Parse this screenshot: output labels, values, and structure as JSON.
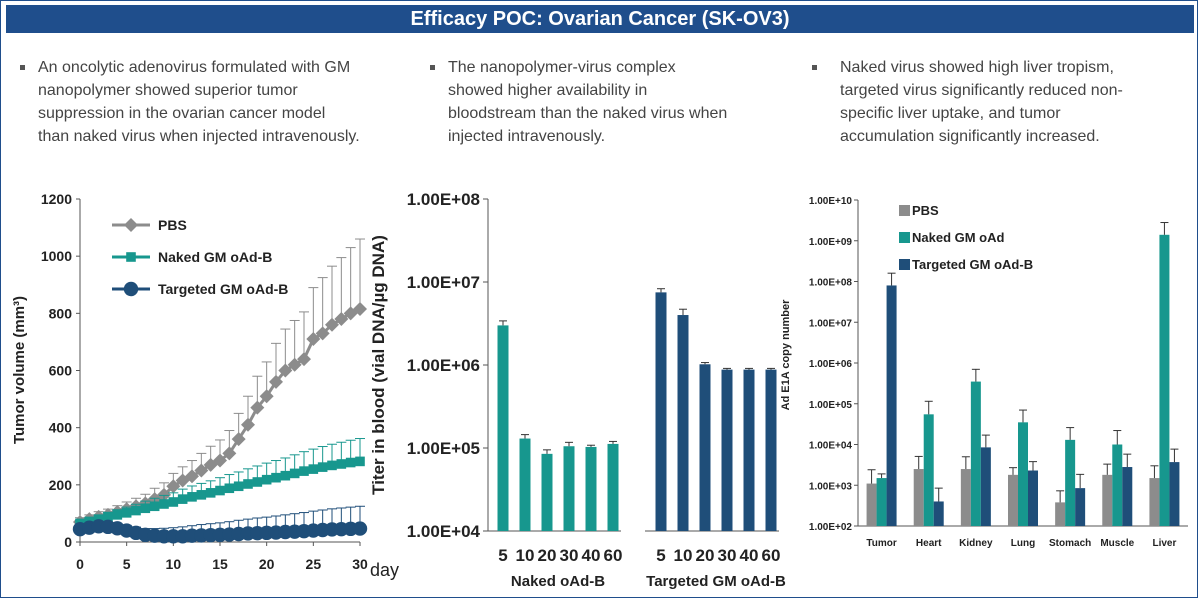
{
  "title": "Efficacy POC: Ovarian Cancer (SK-OV3)",
  "bullets": [
    {
      "lines": [
        "An oncolytic adenovirus formulated with GM",
        "nanopolymer showed superior tumor",
        "suppression in the ovarian cancer model",
        "than naked virus when injected intravenously."
      ]
    },
    {
      "lines": [
        "The nanopolymer-virus complex",
        "showed higher availability  in",
        "bloodstream than the naked virus when",
        "injected intravenously."
      ]
    },
    {
      "lines": [
        "Naked virus showed high liver tropism,",
        "targeted virus significantly reduced non-",
        "specific liver uptake, and tumor",
        "accumulation significantly increased."
      ]
    }
  ],
  "colors": {
    "title_bg": "#1f4e8c",
    "pbs": "#8c8c8c",
    "naked": "#17978e",
    "targeted": "#1f4e79"
  },
  "chart_data": [
    {
      "type": "line",
      "ylabel": "Tumor volume (mm³)",
      "xlabel": "day",
      "ylim": [
        0,
        1200
      ],
      "xlim": [
        0,
        30
      ],
      "yticks": [
        "0",
        "200",
        "400",
        "600",
        "800",
        "1000",
        "1200"
      ],
      "xticks": [
        "0",
        "5",
        "10",
        "15",
        "20",
        "25",
        "30"
      ],
      "legend": "top-left",
      "x": [
        0,
        1,
        2,
        3,
        4,
        5,
        6,
        7,
        8,
        9,
        10,
        11,
        12,
        13,
        14,
        15,
        16,
        17,
        18,
        19,
        20,
        21,
        22,
        23,
        24,
        25,
        26,
        27,
        28,
        29,
        30
      ],
      "series": [
        {
          "name": "PBS",
          "color": "#8c8c8c",
          "marker": "diamond",
          "values": [
            70,
            80,
            88,
            95,
            105,
            115,
            125,
            135,
            150,
            165,
            195,
            215,
            230,
            250,
            270,
            285,
            310,
            360,
            410,
            470,
            510,
            560,
            600,
            620,
            640,
            710,
            730,
            760,
            780,
            800,
            815
          ],
          "errors": [
            15,
            15,
            18,
            20,
            22,
            25,
            28,
            32,
            38,
            42,
            45,
            48,
            55,
            60,
            65,
            72,
            80,
            90,
            100,
            110,
            120,
            135,
            145,
            155,
            165,
            180,
            195,
            205,
            215,
            230,
            245
          ]
        },
        {
          "name": "Naked GM oAd-B",
          "color": "#17978e",
          "marker": "square",
          "values": [
            65,
            72,
            80,
            88,
            95,
            102,
            110,
            118,
            125,
            133,
            140,
            150,
            158,
            165,
            172,
            180,
            188,
            195,
            203,
            210,
            218,
            225,
            232,
            240,
            248,
            255,
            262,
            268,
            273,
            278,
            282
          ],
          "errors": [
            10,
            12,
            14,
            16,
            18,
            20,
            22,
            25,
            28,
            30,
            32,
            35,
            38,
            40,
            42,
            45,
            48,
            50,
            53,
            56,
            58,
            60,
            62,
            65,
            68,
            70,
            72,
            74,
            76,
            78,
            80
          ]
        },
        {
          "name": "Targeted GM oAd-B",
          "color": "#1f4e79",
          "marker": "circle",
          "values": [
            45,
            50,
            55,
            53,
            48,
            40,
            32,
            25,
            22,
            20,
            20,
            20,
            22,
            23,
            24,
            25,
            26,
            28,
            30,
            31,
            32,
            33,
            35,
            36,
            38,
            40,
            42,
            44,
            45,
            46,
            47
          ],
          "errors": [
            12,
            14,
            15,
            16,
            17,
            18,
            20,
            22,
            25,
            28,
            30,
            33,
            35,
            38,
            40,
            42,
            45,
            48,
            50,
            53,
            55,
            58,
            60,
            63,
            65,
            68,
            70,
            72,
            74,
            76,
            78
          ]
        }
      ]
    },
    {
      "type": "bar",
      "ylabel": "Titer in blood (vial DNA/µg DNA)",
      "yscale": "log",
      "ylim": [
        10000,
        100000000
      ],
      "yticks": [
        "1.00E+04",
        "1.00E+05",
        "1.00E+06",
        "1.00E+07",
        "1.00E+08"
      ],
      "groups": [
        {
          "name": "Naked oAd-B",
          "color": "#17978e",
          "categories": [
            "5",
            "10",
            "20",
            "30",
            "40",
            "60"
          ],
          "values": [
            3000000,
            130000,
            85000,
            105000,
            103000,
            112000
          ],
          "errors": [
            400000,
            15000,
            10000,
            12000,
            5000,
            8000
          ]
        },
        {
          "name": "Targeted GM oAd-B",
          "color": "#1f4e79",
          "categories": [
            "5",
            "10",
            "20",
            "30",
            "40",
            "60"
          ],
          "values": [
            7500000,
            4000000,
            1020000,
            880000,
            880000,
            880000
          ],
          "errors": [
            800000,
            700000,
            50000,
            30000,
            30000,
            30000
          ]
        }
      ]
    },
    {
      "type": "bar",
      "ylabel": "Ad E1A copy number",
      "yscale": "log",
      "ylim": [
        100,
        10000000000
      ],
      "yticks": [
        "1.00E+02",
        "1.00E+03",
        "1.00E+04",
        "1.00E+05",
        "1.00E+06",
        "1.00E+07",
        "1.00E+08",
        "1.00E+09",
        "1.00E+10"
      ],
      "legend": "top-left",
      "categories": [
        "Tumor",
        "Heart",
        "Kidney",
        "Lung",
        "Stomach",
        "Muscle",
        "Liver"
      ],
      "series": [
        {
          "name": "PBS",
          "color": "#8c8c8c",
          "values": [
            1100,
            2500,
            2500,
            1800,
            380,
            1800,
            1500
          ],
          "errors": [
            1300,
            2600,
            2500,
            900,
            350,
            1500,
            1500
          ]
        },
        {
          "name": "Naked GM oAd",
          "color": "#17978e",
          "values": [
            1500,
            55000,
            350000,
            35000,
            13000,
            10000,
            1400000000
          ],
          "errors": [
            400,
            60000,
            350000,
            35000,
            13000,
            12000,
            1400000000
          ]
        },
        {
          "name": "Targeted GM oAd-B",
          "color": "#1f4e79",
          "values": [
            80000000,
            400,
            8500,
            2300,
            850,
            2800,
            3700
          ],
          "errors": [
            80000000,
            450,
            8500,
            1500,
            1000,
            3000,
            4000
          ]
        }
      ]
    }
  ]
}
